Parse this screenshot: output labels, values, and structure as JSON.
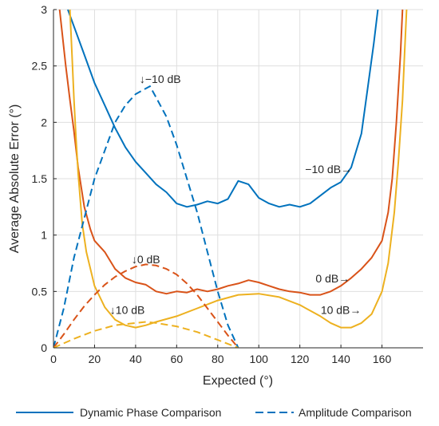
{
  "chart_data": {
    "type": "line",
    "xlabel": "Expected (°)",
    "ylabel": "Average Absolute Error (°)",
    "xlim": [
      0,
      180
    ],
    "ylim": [
      0,
      3
    ],
    "xticks": [
      0,
      20,
      40,
      60,
      80,
      100,
      120,
      140,
      160
    ],
    "yticks": [
      0,
      0.5,
      1,
      1.5,
      2,
      2.5,
      3
    ],
    "grid": true,
    "legend": {
      "placement": "bottom",
      "entries": [
        {
          "label": "Dynamic Phase Comparison",
          "style": "solid"
        },
        {
          "label": "Amplitude Comparison",
          "style": "dashed"
        }
      ]
    },
    "colors": {
      "-10 dB": "#0072bd",
      "0 dB": "#d95319",
      "10 dB": "#edb120"
    },
    "series": [
      {
        "name": "−10 dB",
        "method": "Dynamic Phase Comparison",
        "style": "solid",
        "color": "#0072bd",
        "x": [
          7,
          10,
          15,
          20,
          25,
          30,
          35,
          40,
          45,
          50,
          55,
          60,
          65,
          70,
          75,
          80,
          85,
          90,
          95,
          100,
          105,
          110,
          115,
          120,
          125,
          130,
          135,
          140,
          145,
          150,
          153,
          156,
          158
        ],
        "y": [
          3.0,
          2.85,
          2.6,
          2.35,
          2.15,
          1.95,
          1.78,
          1.65,
          1.55,
          1.45,
          1.38,
          1.28,
          1.25,
          1.27,
          1.3,
          1.28,
          1.32,
          1.48,
          1.45,
          1.33,
          1.28,
          1.25,
          1.27,
          1.25,
          1.28,
          1.35,
          1.42,
          1.47,
          1.6,
          1.9,
          2.3,
          2.7,
          3.0
        ]
      },
      {
        "name": "0 dB",
        "method": "Dynamic Phase Comparison",
        "style": "solid",
        "color": "#d95319",
        "x": [
          3,
          6,
          8,
          10,
          12,
          15,
          18,
          20,
          25,
          30,
          35,
          40,
          45,
          50,
          55,
          60,
          65,
          70,
          75,
          80,
          85,
          90,
          95,
          100,
          105,
          110,
          115,
          120,
          125,
          130,
          135,
          140,
          145,
          150,
          155,
          160,
          163,
          165,
          167,
          169,
          170
        ],
        "y": [
          3.0,
          2.5,
          2.2,
          1.92,
          1.6,
          1.25,
          1.05,
          0.95,
          0.85,
          0.7,
          0.62,
          0.58,
          0.56,
          0.5,
          0.48,
          0.5,
          0.49,
          0.52,
          0.5,
          0.52,
          0.55,
          0.57,
          0.6,
          0.58,
          0.55,
          0.52,
          0.5,
          0.49,
          0.47,
          0.47,
          0.5,
          0.55,
          0.62,
          0.7,
          0.8,
          0.95,
          1.2,
          1.5,
          2.0,
          2.6,
          3.0
        ]
      },
      {
        "name": "10 dB",
        "method": "Dynamic Phase Comparison",
        "style": "solid",
        "color": "#edb120",
        "x": [
          8,
          9,
          10,
          11,
          12,
          14,
          16,
          20,
          25,
          30,
          35,
          40,
          45,
          50,
          60,
          70,
          80,
          90,
          100,
          110,
          120,
          130,
          135,
          140,
          145,
          150,
          155,
          160,
          163,
          166,
          168,
          170,
          171,
          172
        ],
        "y": [
          3.0,
          2.6,
          2.2,
          1.85,
          1.55,
          1.1,
          0.85,
          0.55,
          0.36,
          0.25,
          0.2,
          0.18,
          0.2,
          0.23,
          0.28,
          0.35,
          0.42,
          0.47,
          0.48,
          0.45,
          0.38,
          0.28,
          0.22,
          0.18,
          0.18,
          0.22,
          0.3,
          0.5,
          0.75,
          1.2,
          1.65,
          2.2,
          2.6,
          3.0
        ]
      },
      {
        "name": "−10 dB",
        "method": "Amplitude Comparison",
        "style": "dashed",
        "color": "#0072bd",
        "x": [
          0,
          5,
          10,
          15,
          20,
          25,
          30,
          35,
          40,
          45,
          47,
          50,
          55,
          60,
          65,
          70,
          75,
          80,
          85,
          90
        ],
        "y": [
          0.0,
          0.35,
          0.8,
          1.15,
          1.5,
          1.75,
          2.0,
          2.15,
          2.25,
          2.3,
          2.32,
          2.22,
          2.05,
          1.8,
          1.5,
          1.2,
          0.85,
          0.5,
          0.2,
          0.0
        ]
      },
      {
        "name": "0 dB",
        "method": "Amplitude Comparison",
        "style": "dashed",
        "color": "#d95319",
        "x": [
          0,
          5,
          10,
          15,
          20,
          25,
          30,
          35,
          40,
          45,
          50,
          55,
          60,
          65,
          70,
          75,
          80,
          85,
          90
        ],
        "y": [
          0.0,
          0.12,
          0.25,
          0.37,
          0.47,
          0.56,
          0.63,
          0.68,
          0.72,
          0.74,
          0.73,
          0.7,
          0.65,
          0.57,
          0.47,
          0.35,
          0.23,
          0.11,
          0.0
        ]
      },
      {
        "name": "10 dB",
        "method": "Amplitude Comparison",
        "style": "dashed",
        "color": "#edb120",
        "x": [
          0,
          10,
          20,
          30,
          40,
          45,
          50,
          60,
          70,
          80,
          90
        ],
        "y": [
          0.0,
          0.08,
          0.15,
          0.2,
          0.22,
          0.23,
          0.22,
          0.19,
          0.14,
          0.07,
          0.0
        ]
      }
    ],
    "annotations": [
      {
        "text": "↓−10 dB",
        "x": 52,
        "y": 2.35
      },
      {
        "text": "−10 dB→",
        "x": 134,
        "y": 1.55
      },
      {
        "text": "↓0 dB",
        "x": 45,
        "y": 0.75
      },
      {
        "text": "0 dB→",
        "x": 136,
        "y": 0.58
      },
      {
        "text": "↓10 dB",
        "x": 36,
        "y": 0.3
      },
      {
        "text": "10 dB→",
        "x": 140,
        "y": 0.3
      }
    ]
  }
}
